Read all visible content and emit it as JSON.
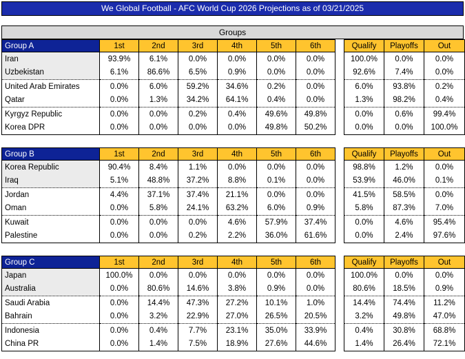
{
  "title": "We Global Football - AFC World Cup 2026 Projections as of 03/21/2025",
  "section_header": "Groups",
  "headers": {
    "positions": [
      "1st",
      "2nd",
      "3rd",
      "4th",
      "5th",
      "6th"
    ],
    "outcomes": [
      "Qualify",
      "Playoffs",
      "Out"
    ]
  },
  "colors": {
    "title_blue": "#1B2CAC",
    "header_blue": "#0E2396",
    "header_gold": "#FFC42E",
    "banner_gray": "#D9D9D9",
    "shaded_gray": "#EBEBEB"
  },
  "groups": [
    {
      "name": "Group A",
      "teams": [
        {
          "team": "Iran",
          "shaded": true,
          "positions": [
            "93.9%",
            "6.1%",
            "0.0%",
            "0.0%",
            "0.0%",
            "0.0%"
          ],
          "outcomes": [
            "100.0%",
            "0.0%",
            "0.0%"
          ]
        },
        {
          "team": "Uzbekistan",
          "shaded": true,
          "positions": [
            "6.1%",
            "86.6%",
            "6.5%",
            "0.9%",
            "0.0%",
            "0.0%"
          ],
          "outcomes": [
            "92.6%",
            "7.4%",
            "0.0%"
          ]
        },
        {
          "team": "United Arab Emirates",
          "shaded": false,
          "positions": [
            "0.0%",
            "6.0%",
            "59.2%",
            "34.6%",
            "0.2%",
            "0.0%"
          ],
          "outcomes": [
            "6.0%",
            "93.8%",
            "0.2%"
          ]
        },
        {
          "team": "Qatar",
          "shaded": false,
          "positions": [
            "0.0%",
            "1.3%",
            "34.2%",
            "64.1%",
            "0.4%",
            "0.0%"
          ],
          "outcomes": [
            "1.3%",
            "98.2%",
            "0.4%"
          ]
        },
        {
          "team": "Kyrgyz Republic",
          "shaded": false,
          "positions": [
            "0.0%",
            "0.0%",
            "0.2%",
            "0.4%",
            "49.6%",
            "49.8%"
          ],
          "outcomes": [
            "0.0%",
            "0.6%",
            "99.4%"
          ]
        },
        {
          "team": "Korea DPR",
          "shaded": false,
          "positions": [
            "0.0%",
            "0.0%",
            "0.0%",
            "0.0%",
            "49.8%",
            "50.2%"
          ],
          "outcomes": [
            "0.0%",
            "0.0%",
            "100.0%"
          ]
        }
      ]
    },
    {
      "name": "Group B",
      "teams": [
        {
          "team": "Korea Republic",
          "shaded": true,
          "positions": [
            "90.4%",
            "8.4%",
            "1.1%",
            "0.0%",
            "0.0%",
            "0.0%"
          ],
          "outcomes": [
            "98.8%",
            "1.2%",
            "0.0%"
          ]
        },
        {
          "team": "Iraq",
          "shaded": true,
          "positions": [
            "5.1%",
            "48.8%",
            "37.2%",
            "8.8%",
            "0.1%",
            "0.0%"
          ],
          "outcomes": [
            "53.9%",
            "46.0%",
            "0.1%"
          ]
        },
        {
          "team": "Jordan",
          "shaded": false,
          "positions": [
            "4.4%",
            "37.1%",
            "37.4%",
            "21.1%",
            "0.0%",
            "0.0%"
          ],
          "outcomes": [
            "41.5%",
            "58.5%",
            "0.0%"
          ]
        },
        {
          "team": "Oman",
          "shaded": false,
          "positions": [
            "0.0%",
            "5.8%",
            "24.1%",
            "63.2%",
            "6.0%",
            "0.9%"
          ],
          "outcomes": [
            "5.8%",
            "87.3%",
            "7.0%"
          ]
        },
        {
          "team": "Kuwait",
          "shaded": false,
          "positions": [
            "0.0%",
            "0.0%",
            "0.0%",
            "4.6%",
            "57.9%",
            "37.4%"
          ],
          "outcomes": [
            "0.0%",
            "4.6%",
            "95.4%"
          ]
        },
        {
          "team": "Palestine",
          "shaded": false,
          "positions": [
            "0.0%",
            "0.0%",
            "0.2%",
            "2.2%",
            "36.0%",
            "61.6%"
          ],
          "outcomes": [
            "0.0%",
            "2.4%",
            "97.6%"
          ]
        }
      ]
    },
    {
      "name": "Group C",
      "teams": [
        {
          "team": "Japan",
          "shaded": true,
          "positions": [
            "100.0%",
            "0.0%",
            "0.0%",
            "0.0%",
            "0.0%",
            "0.0%"
          ],
          "outcomes": [
            "100.0%",
            "0.0%",
            "0.0%"
          ]
        },
        {
          "team": "Australia",
          "shaded": true,
          "positions": [
            "0.0%",
            "80.6%",
            "14.6%",
            "3.8%",
            "0.9%",
            "0.0%"
          ],
          "outcomes": [
            "80.6%",
            "18.5%",
            "0.9%"
          ]
        },
        {
          "team": "Saudi Arabia",
          "shaded": false,
          "positions": [
            "0.0%",
            "14.4%",
            "47.3%",
            "27.2%",
            "10.1%",
            "1.0%"
          ],
          "outcomes": [
            "14.4%",
            "74.4%",
            "11.2%"
          ]
        },
        {
          "team": "Bahrain",
          "shaded": false,
          "positions": [
            "0.0%",
            "3.2%",
            "22.9%",
            "27.0%",
            "26.5%",
            "20.5%"
          ],
          "outcomes": [
            "3.2%",
            "49.8%",
            "47.0%"
          ]
        },
        {
          "team": "Indonesia",
          "shaded": false,
          "positions": [
            "0.0%",
            "0.4%",
            "7.7%",
            "23.1%",
            "35.0%",
            "33.9%"
          ],
          "outcomes": [
            "0.4%",
            "30.8%",
            "68.8%"
          ]
        },
        {
          "team": "China PR",
          "shaded": false,
          "positions": [
            "0.0%",
            "1.4%",
            "7.5%",
            "18.9%",
            "27.6%",
            "44.6%"
          ],
          "outcomes": [
            "1.4%",
            "26.4%",
            "72.1%"
          ]
        }
      ]
    }
  ]
}
